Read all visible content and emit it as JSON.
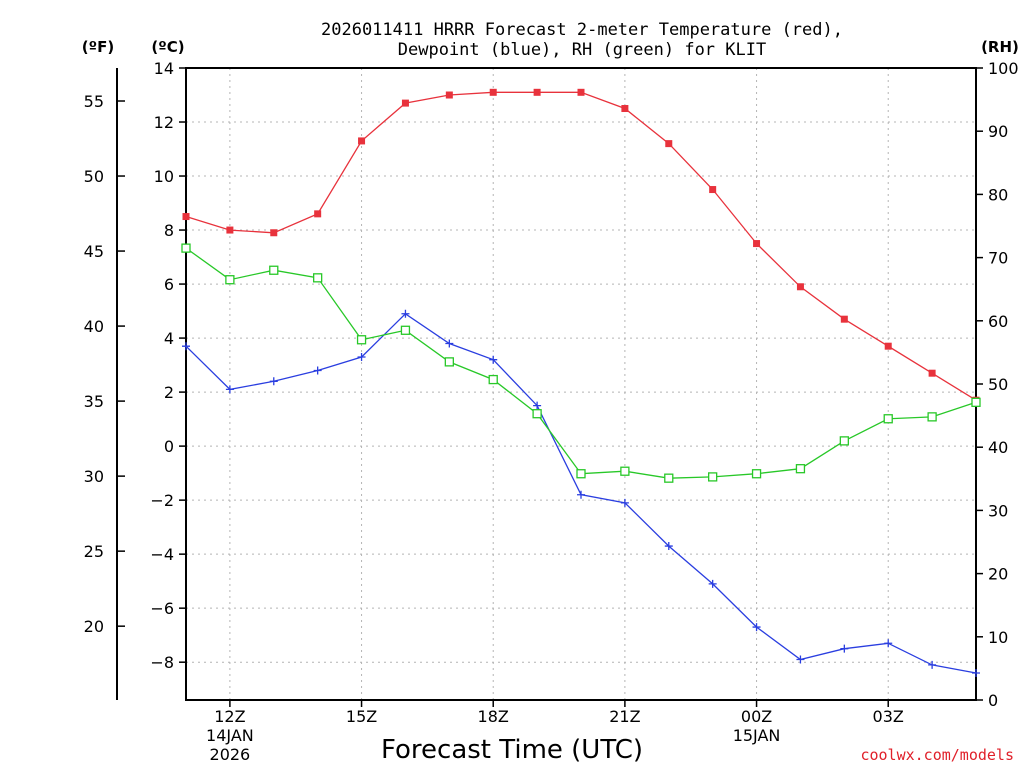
{
  "chart_data": {
    "type": "line",
    "title_line1": "2026011411 HRRR Forecast 2-meter Temperature (red),",
    "title_line2": "Dewpoint (blue), RH (green) for KLIT",
    "xlabel": "Forecast Time (UTC)",
    "unit_f": "(ºF)",
    "unit_c": "(ºC)",
    "unit_rh": "(RH)",
    "credit": "coolwx.com/models",
    "x_hours": [
      11,
      12,
      13,
      14,
      15,
      16,
      17,
      18,
      19,
      20,
      21,
      22,
      23,
      24,
      25,
      26,
      27,
      28,
      29
    ],
    "x_range": [
      11,
      29
    ],
    "x_ticks": [
      {
        "hour": 12,
        "label": "12Z",
        "date1": "14JAN",
        "date2": "2026"
      },
      {
        "hour": 15,
        "label": "15Z"
      },
      {
        "hour": 18,
        "label": "18Z"
      },
      {
        "hour": 21,
        "label": "21Z"
      },
      {
        "hour": 24,
        "label": "00Z",
        "date1": "15JAN"
      },
      {
        "hour": 27,
        "label": "03Z"
      }
    ],
    "y_c_range": [
      -9.4,
      14
    ],
    "y_c_ticks": [
      -8,
      -6,
      -4,
      -2,
      0,
      2,
      4,
      6,
      8,
      10,
      12,
      14
    ],
    "y_f_ticks": [
      20,
      25,
      30,
      35,
      40,
      45,
      50,
      55
    ],
    "y_rh_range": [
      0,
      100
    ],
    "y_rh_ticks": [
      0,
      10,
      20,
      30,
      40,
      50,
      60,
      70,
      80,
      90,
      100
    ],
    "series": [
      {
        "name": "Temperature",
        "axis": "C",
        "color": "#e8323c",
        "marker": "filled-square",
        "values": [
          8.5,
          8.0,
          7.9,
          8.6,
          11.3,
          12.7,
          13.0,
          13.1,
          13.1,
          13.1,
          12.5,
          11.2,
          9.5,
          7.5,
          5.9,
          4.7,
          3.7,
          2.7,
          1.7
        ]
      },
      {
        "name": "Dewpoint",
        "axis": "C",
        "color": "#2a3ee0",
        "marker": "plus",
        "values": [
          3.7,
          2.1,
          2.4,
          2.8,
          3.3,
          4.9,
          3.8,
          3.2,
          1.5,
          -1.8,
          -2.1,
          -3.7,
          -5.1,
          -6.7,
          -7.9,
          -7.5,
          -7.3,
          -8.1,
          -8.4
        ]
      },
      {
        "name": "RH",
        "axis": "RH",
        "color": "#28c828",
        "marker": "open-square",
        "values": [
          71.5,
          66.5,
          68,
          66.8,
          57,
          58.5,
          53.5,
          50.7,
          45.3,
          35.8,
          36.2,
          35.1,
          35.3,
          35.8,
          36.6,
          41,
          44.5,
          44.8,
          47.1
        ]
      }
    ]
  }
}
